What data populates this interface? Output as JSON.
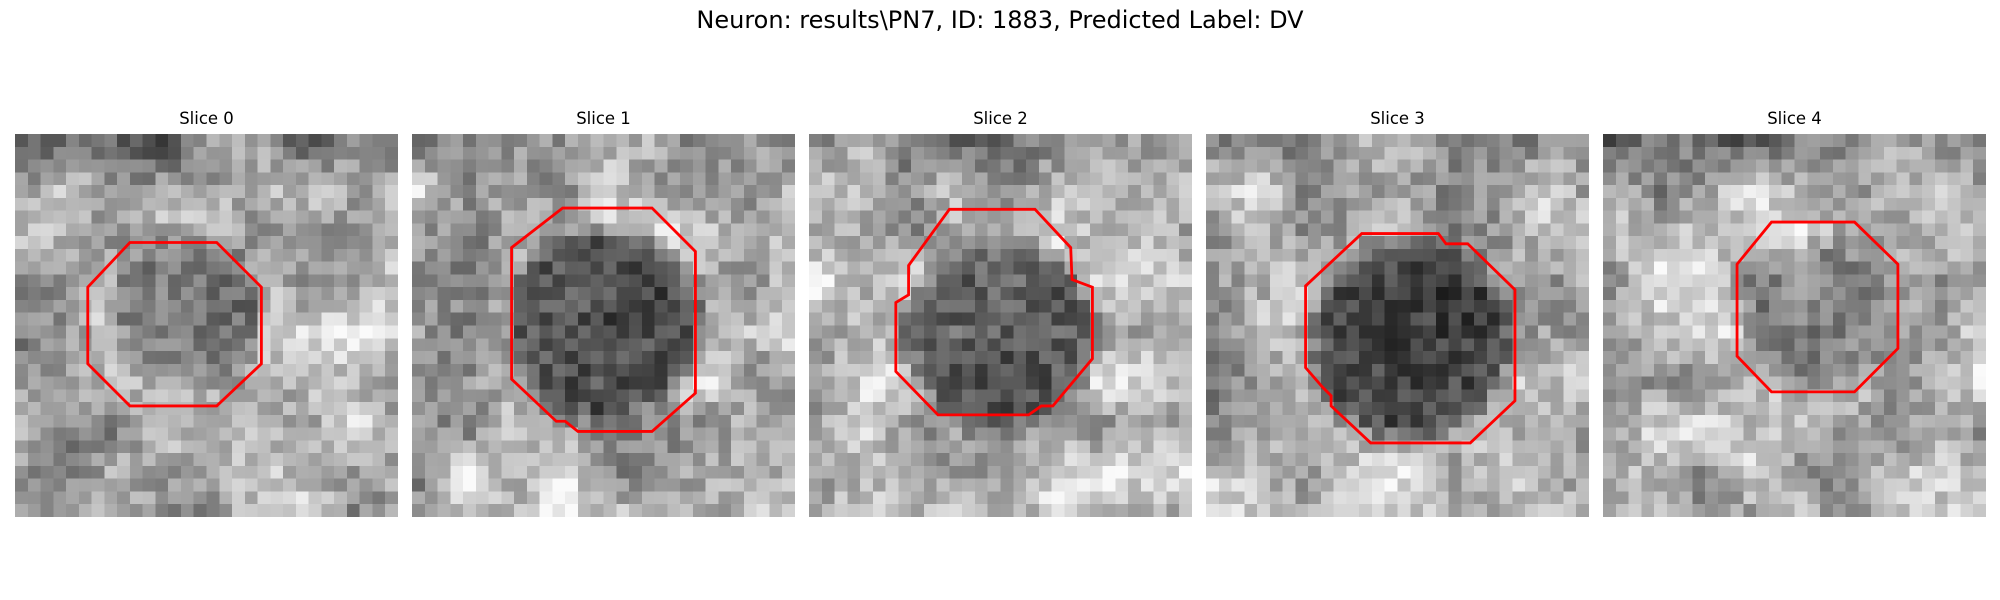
{
  "figure": {
    "title": "Neuron: results\\PN7, ID: 1883, Predicted Label: DV",
    "contour_color": "#ff0000",
    "panels": [
      {
        "title": "Slice 0"
      },
      {
        "title": "Slice 1"
      },
      {
        "title": "Slice 2"
      },
      {
        "title": "Slice 3"
      },
      {
        "title": "Slice 4"
      }
    ]
  }
}
